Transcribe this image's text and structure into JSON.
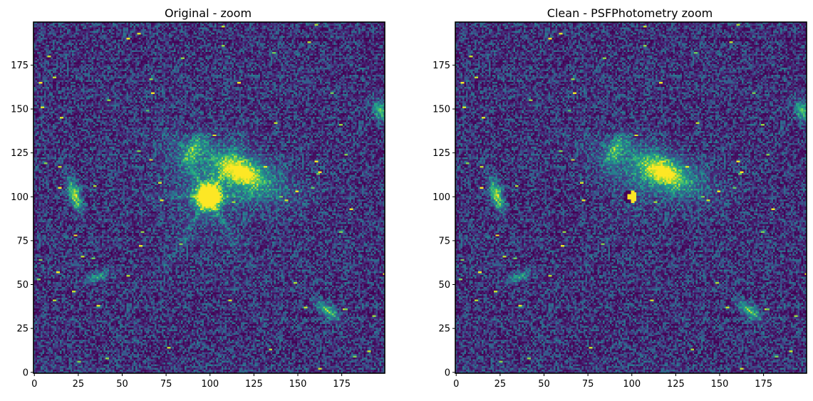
{
  "colormap": "viridis",
  "colors": {
    "background": "#440154",
    "low": "#46327e",
    "mid": "#21918c",
    "high": "#5ec962",
    "saturated": "#fde725"
  },
  "chart_data": [
    {
      "type": "heatmap",
      "title": "Original - zoom",
      "xlim": [
        0,
        199
      ],
      "ylim": [
        0,
        199
      ],
      "xticks": [
        0,
        25,
        50,
        75,
        100,
        125,
        150,
        175
      ],
      "yticks": [
        0,
        25,
        50,
        75,
        100,
        125,
        150,
        175
      ],
      "grid": false,
      "residual": false,
      "sources": [
        {
          "name": "bright-star",
          "x": 99,
          "y": 100,
          "peak": 1.0
        },
        {
          "name": "central-galaxy",
          "x": 118,
          "y": 114,
          "peak": 0.85
        },
        {
          "name": "galaxy-upper-arm",
          "x": 92,
          "y": 126,
          "peak": 0.55
        },
        {
          "name": "galaxy-left",
          "x": 23,
          "y": 101,
          "peak": 0.7
        },
        {
          "name": "galaxy-lower-right",
          "x": 167,
          "y": 35,
          "peak": 0.65
        },
        {
          "name": "galaxy-lower-left",
          "x": 35,
          "y": 54,
          "peak": 0.45
        },
        {
          "name": "edge-source",
          "x": 196,
          "y": 148,
          "peak": 0.6
        }
      ]
    },
    {
      "type": "heatmap",
      "title": "Clean - PSFPhotometry zoom",
      "xlim": [
        0,
        199
      ],
      "ylim": [
        0,
        199
      ],
      "xticks": [
        0,
        25,
        50,
        75,
        100,
        125,
        150,
        175
      ],
      "yticks": [
        0,
        25,
        50,
        75,
        100,
        125,
        150,
        175
      ],
      "grid": false,
      "residual": true,
      "sources": [
        {
          "name": "star-residual",
          "x": 99,
          "y": 100,
          "peak": 0.9
        },
        {
          "name": "central-galaxy",
          "x": 118,
          "y": 114,
          "peak": 0.85
        },
        {
          "name": "galaxy-upper-arm",
          "x": 92,
          "y": 126,
          "peak": 0.5
        },
        {
          "name": "galaxy-left",
          "x": 23,
          "y": 101,
          "peak": 0.7
        },
        {
          "name": "galaxy-lower-right",
          "x": 167,
          "y": 35,
          "peak": 0.65
        },
        {
          "name": "galaxy-lower-left",
          "x": 35,
          "y": 54,
          "peak": 0.45
        },
        {
          "name": "edge-source",
          "x": 196,
          "y": 148,
          "peak": 0.6
        }
      ]
    }
  ]
}
